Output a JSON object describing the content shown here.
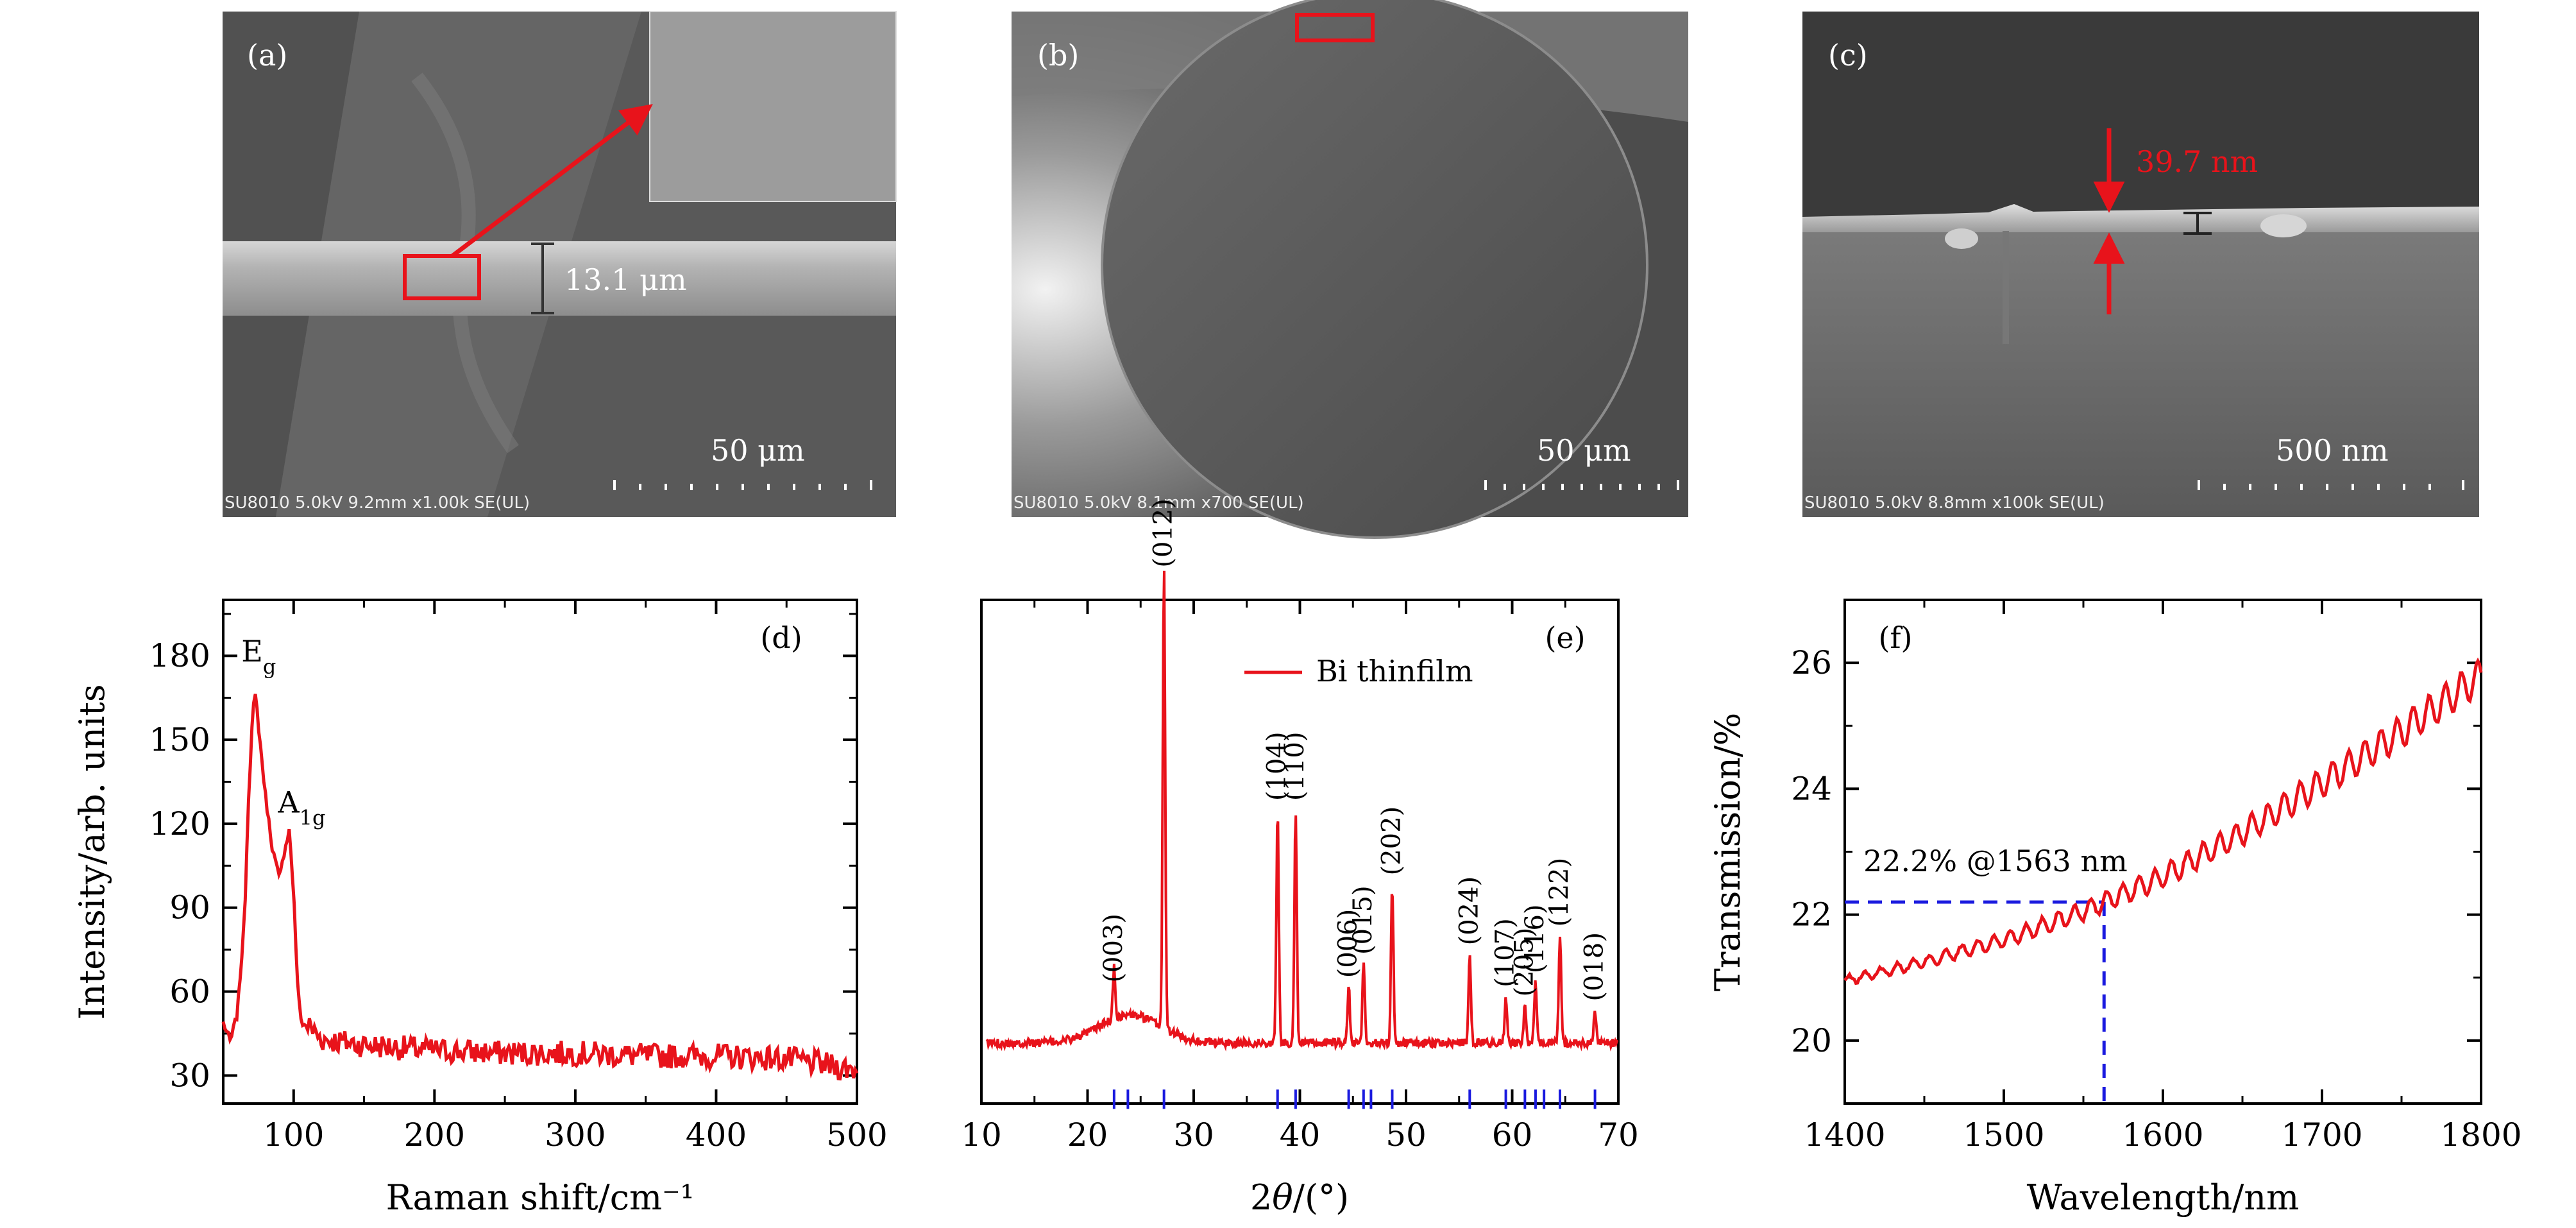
{
  "colors": {
    "curve": "#e8131b",
    "reference": "#1a1adf",
    "dashed": "#1a1adf",
    "sem_marker": "#e8131b"
  },
  "sem_panels": [
    {
      "label": "(a)",
      "scale_bar": "50 μm",
      "footer": "SU8010 5.0kV 9.2mm x1.00k SE(UL)",
      "measurement": "13.1 μm"
    },
    {
      "label": "(b)",
      "scale_bar": "50 μm",
      "footer": "SU8010 5.0kV 8.1mm x700 SE(UL)"
    },
    {
      "label": "(c)",
      "scale_bar": "500 nm",
      "footer": "SU8010 5.0kV 8.8mm x100k SE(UL)",
      "measurement": "39.7 nm"
    }
  ],
  "chart_data": [
    {
      "panel": "(d)",
      "type": "line",
      "xlabel": "Raman shift/cm⁻¹",
      "ylabel": "Intensity/arb. units",
      "xlim": [
        50,
        500
      ],
      "ylim": [
        20,
        200
      ],
      "xticks": [
        100,
        200,
        300,
        400,
        500
      ],
      "yticks": [
        30,
        60,
        90,
        120,
        150,
        180
      ],
      "annotations": [
        {
          "text": "E",
          "sub": "g",
          "x": 72,
          "y": 178
        },
        {
          "text": "A",
          "sub": "1g",
          "x": 98,
          "y": 124
        }
      ],
      "series": [
        {
          "name": "Raman",
          "x": [
            50,
            55,
            60,
            65,
            68,
            71,
            73,
            76,
            80,
            85,
            90,
            94,
            97,
            100,
            103,
            106,
            110,
            120,
            150,
            200,
            250,
            300,
            350,
            400,
            450,
            500
          ],
          "y": [
            49,
            42,
            52,
            85,
            130,
            160,
            166,
            150,
            130,
            111,
            100,
            112,
            118,
            95,
            60,
            48,
            48,
            43,
            41,
            39,
            38,
            38,
            37,
            37,
            36,
            32
          ]
        }
      ]
    },
    {
      "panel": "(e)",
      "type": "line",
      "xlabel": "2θ/(°)",
      "ylabel": "",
      "xlim": [
        10,
        70
      ],
      "ylim": [
        -0.3,
        10.5
      ],
      "xticks": [
        10,
        20,
        30,
        40,
        50,
        60,
        70
      ],
      "legend": "Bi thinfilm",
      "peaks": [
        {
          "hkl": "(003)",
          "x": 22.5,
          "h": 1.1
        },
        {
          "hkl": "(012)",
          "x": 27.2,
          "h": 10.0
        },
        {
          "hkl": "(104)",
          "x": 37.9,
          "h": 5.0
        },
        {
          "hkl": "(110)",
          "x": 39.6,
          "h": 5.0
        },
        {
          "hkl": "(006)",
          "x": 44.6,
          "h": 1.2
        },
        {
          "hkl": "(015)",
          "x": 46.0,
          "h": 1.7
        },
        {
          "hkl": "(202)",
          "x": 48.7,
          "h": 3.4
        },
        {
          "hkl": "(024)",
          "x": 56.0,
          "h": 1.9
        },
        {
          "hkl": "(107)",
          "x": 59.4,
          "h": 1.0
        },
        {
          "hkl": "(205)",
          "x": 61.2,
          "h": 0.8
        },
        {
          "hkl": "(116)",
          "x": 62.2,
          "h": 1.3
        },
        {
          "hkl": "(122)",
          "x": 64.5,
          "h": 2.3
        },
        {
          "hkl": "(018)",
          "x": 67.8,
          "h": 0.7
        }
      ],
      "reference_lines": [
        22.5,
        23.8,
        27.2,
        37.9,
        39.6,
        44.6,
        46.0,
        46.7,
        48.7,
        56.0,
        59.4,
        61.2,
        62.2,
        63.0,
        64.5,
        67.8
      ]
    },
    {
      "panel": "(f)",
      "type": "line",
      "xlabel": "Wavelength/nm",
      "ylabel": "Transmission/%",
      "xlim": [
        1400,
        1800
      ],
      "ylim": [
        19,
        27
      ],
      "xticks": [
        1400,
        1500,
        1600,
        1700,
        1800
      ],
      "yticks": [
        20,
        22,
        24,
        26
      ],
      "annotation": "22.2% @1563 nm",
      "marker": {
        "x": 1563,
        "y": 22.2
      },
      "series": [
        {
          "name": "Transmission",
          "x": [
            1400,
            1450,
            1500,
            1550,
            1563,
            1600,
            1650,
            1700,
            1750,
            1800
          ],
          "y": [
            20.95,
            21.25,
            21.6,
            22.05,
            22.2,
            22.6,
            23.3,
            24.1,
            24.9,
            25.8
          ]
        }
      ]
    }
  ]
}
